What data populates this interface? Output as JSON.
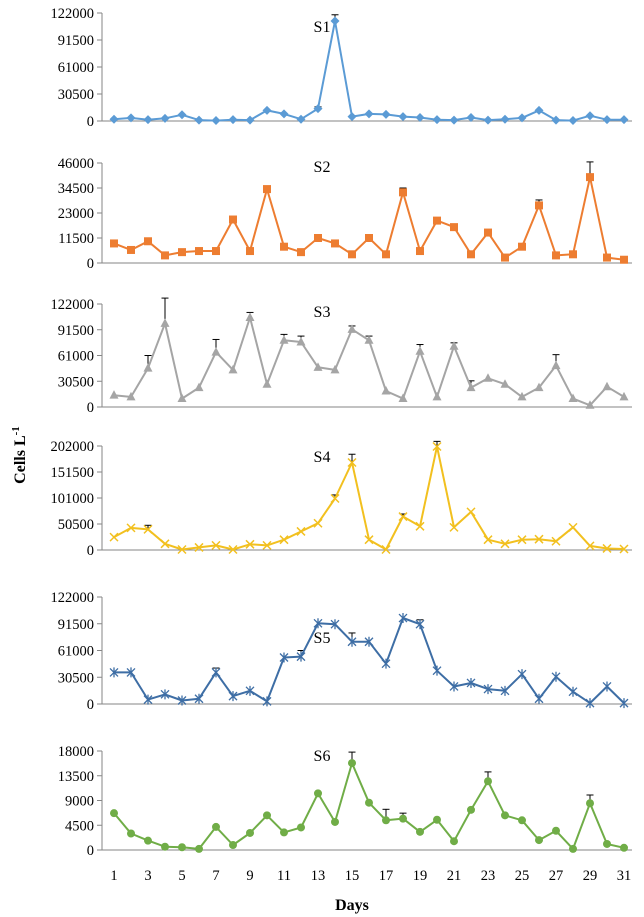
{
  "chart_data": {
    "type": "line",
    "ylabel": "Cells L",
    "ylabel_superscript": "-1",
    "xlabel": "Days",
    "x": [
      1,
      2,
      3,
      4,
      5,
      6,
      7,
      8,
      9,
      10,
      11,
      12,
      13,
      14,
      15,
      16,
      17,
      18,
      19,
      20,
      21,
      22,
      23,
      24,
      25,
      26,
      27,
      28,
      29,
      30,
      31
    ],
    "x_ticks": [
      "1",
      "3",
      "5",
      "7",
      "9",
      "11",
      "13",
      "15",
      "17",
      "19",
      "21",
      "23",
      "25",
      "27",
      "29",
      "31"
    ],
    "panels": [
      {
        "name": "S1",
        "color": "#5b9bd5",
        "marker": "diamond",
        "ylim": [
          0,
          122000
        ],
        "y_ticks": [
          "0",
          "30500",
          "61000",
          "91500",
          "122000"
        ],
        "values": [
          2000,
          3500,
          1500,
          3000,
          7000,
          1000,
          500,
          1500,
          1000,
          12000,
          8000,
          2000,
          14000,
          113000,
          5000,
          8000,
          7500,
          5000,
          4000,
          1500,
          1000,
          4000,
          1000,
          2000,
          3500,
          12000,
          1000,
          500,
          6000,
          1500,
          1500
        ],
        "errors": [
          0,
          0,
          0,
          0,
          0,
          0,
          0,
          0,
          0,
          0,
          0,
          0,
          2000,
          7000,
          0,
          0,
          0,
          0,
          0,
          0,
          0,
          0,
          0,
          0,
          0,
          0,
          0,
          0,
          0,
          0,
          0
        ]
      },
      {
        "name": "S2",
        "color": "#ed7d31",
        "marker": "square",
        "ylim": [
          0,
          46000
        ],
        "y_ticks": [
          "0",
          "11500",
          "23000",
          "34500",
          "46000"
        ],
        "values": [
          9000,
          6000,
          10000,
          3500,
          5000,
          5500,
          5500,
          20000,
          5500,
          34000,
          7500,
          5000,
          11500,
          9000,
          4000,
          11500,
          4000,
          32500,
          5500,
          19500,
          16500,
          4000,
          14000,
          2500,
          7500,
          26500,
          3500,
          4000,
          39500,
          2500,
          1500
        ],
        "errors": [
          0,
          0,
          0,
          0,
          0,
          0,
          0,
          0,
          0,
          0,
          0,
          0,
          0,
          0,
          0,
          0,
          0,
          2000,
          0,
          0,
          0,
          0,
          0,
          0,
          0,
          2500,
          0,
          0,
          7000,
          0,
          0
        ]
      },
      {
        "name": "S3",
        "color": "#a5a5a5",
        "marker": "triangle",
        "ylim": [
          0,
          122000
        ],
        "y_ticks": [
          "0",
          "30500",
          "61000",
          "91500",
          "122000"
        ],
        "values": [
          14000,
          12000,
          46000,
          99000,
          10000,
          23000,
          65000,
          44000,
          106000,
          27000,
          79000,
          77000,
          47000,
          44000,
          92000,
          79000,
          19000,
          10000,
          66000,
          12000,
          72000,
          23000,
          34000,
          27000,
          12000,
          23000,
          49000,
          10000,
          2000,
          24000,
          12000
        ],
        "errors": [
          0,
          0,
          15000,
          30000,
          0,
          0,
          15000,
          0,
          6000,
          0,
          7000,
          7000,
          0,
          0,
          4000,
          5000,
          0,
          0,
          8000,
          0,
          4000,
          8000,
          0,
          0,
          0,
          0,
          13000,
          0,
          0,
          0,
          0
        ]
      },
      {
        "name": "S4",
        "color": "#f2c01f",
        "marker": "x",
        "ylim": [
          0,
          202000
        ],
        "y_ticks": [
          "0",
          "50500",
          "101000",
          "151500",
          "202000"
        ],
        "values": [
          25000,
          43000,
          40000,
          12000,
          1000,
          5000,
          9000,
          1000,
          11000,
          9000,
          20000,
          36000,
          52000,
          100000,
          170000,
          20000,
          1000,
          65000,
          46000,
          201000,
          44000,
          74000,
          20000,
          12000,
          20000,
          21000,
          17000,
          44000,
          8000,
          3000,
          2000
        ],
        "errors": [
          0,
          0,
          8000,
          0,
          0,
          0,
          0,
          0,
          0,
          0,
          0,
          0,
          0,
          7000,
          16000,
          0,
          0,
          5000,
          0,
          10000,
          0,
          0,
          0,
          0,
          0,
          0,
          0,
          0,
          0,
          0,
          0
        ]
      },
      {
        "name": "S5",
        "color": "#3e6ea5",
        "marker": "asterisk",
        "ylim": [
          0,
          122000
        ],
        "y_ticks": [
          "0",
          "30500",
          "61000",
          "91500",
          "122000"
        ],
        "values": [
          36000,
          36000,
          5000,
          11000,
          4000,
          6000,
          36000,
          9000,
          15000,
          3000,
          53000,
          54000,
          92000,
          91000,
          71000,
          71000,
          46000,
          98000,
          91000,
          38000,
          20000,
          24000,
          17000,
          15000,
          34000,
          6000,
          31000,
          14000,
          1000,
          20000,
          1000
        ],
        "errors": [
          0,
          0,
          0,
          0,
          0,
          0,
          5000,
          0,
          0,
          0,
          0,
          7000,
          0,
          0,
          10000,
          0,
          0,
          0,
          5000,
          0,
          0,
          0,
          0,
          0,
          0,
          0,
          0,
          0,
          0,
          0,
          0
        ]
      },
      {
        "name": "S6",
        "color": "#70ad47",
        "marker": "circle",
        "ylim": [
          0,
          18000
        ],
        "y_ticks": [
          "0",
          "4500",
          "9000",
          "13500",
          "18000"
        ],
        "values": [
          6700,
          3000,
          1700,
          600,
          500,
          200,
          4200,
          900,
          3100,
          6300,
          3200,
          4100,
          10300,
          5100,
          15800,
          8600,
          5400,
          5700,
          3300,
          5500,
          1600,
          7300,
          12500,
          6300,
          5400,
          1800,
          3500,
          200,
          8500,
          1100,
          400
        ],
        "errors": [
          0,
          0,
          0,
          0,
          0,
          0,
          0,
          0,
          0,
          0,
          0,
          0,
          0,
          0,
          2000,
          0,
          2000,
          1000,
          0,
          0,
          0,
          0,
          1700,
          0,
          0,
          0,
          0,
          0,
          1500,
          0,
          0
        ]
      }
    ]
  }
}
